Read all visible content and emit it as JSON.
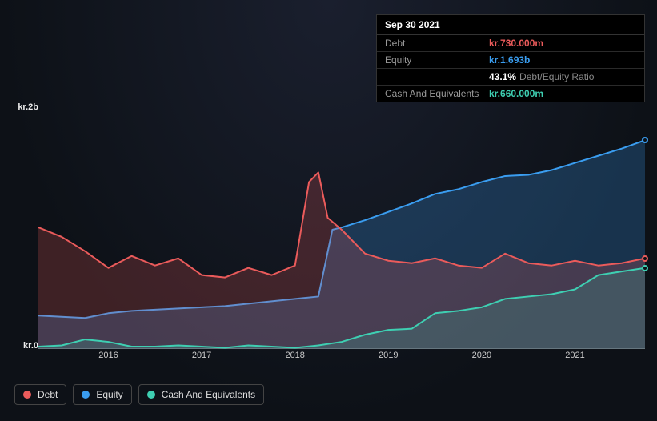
{
  "tooltip": {
    "date": "Sep 30 2021",
    "rows": [
      {
        "label": "Debt",
        "value": "kr.730.000m",
        "color": "#eb5b5b"
      },
      {
        "label": "Equity",
        "value": "kr.1.693b",
        "color": "#3a9df0"
      },
      {
        "label": "",
        "value": "43.1%",
        "suffix": "Debt/Equity Ratio",
        "color": "#ffffff"
      },
      {
        "label": "Cash And Equivalents",
        "value": "kr.660.000m",
        "color": "#3ecfb2"
      }
    ]
  },
  "chart": {
    "type": "area",
    "background": "transparent",
    "ylim": [
      0,
      2000
    ],
    "y_ticks": [
      {
        "v": 2000,
        "label": "kr.2b"
      },
      {
        "v": 0,
        "label": "kr.0"
      }
    ],
    "x_range": [
      2015.25,
      2021.75
    ],
    "x_ticks": [
      {
        "v": 2016,
        "label": "2016"
      },
      {
        "v": 2017,
        "label": "2017"
      },
      {
        "v": 2018,
        "label": "2018"
      },
      {
        "v": 2019,
        "label": "2019"
      },
      {
        "v": 2020,
        "label": "2020"
      },
      {
        "v": 2021,
        "label": "2021"
      }
    ],
    "series": [
      {
        "name": "Equity",
        "color": "#3a9df0",
        "fill_opacity": 0.25,
        "line_width": 2,
        "points": [
          [
            2015.25,
            280
          ],
          [
            2015.5,
            270
          ],
          [
            2015.75,
            260
          ],
          [
            2016,
            300
          ],
          [
            2016.25,
            320
          ],
          [
            2016.5,
            330
          ],
          [
            2016.75,
            340
          ],
          [
            2017,
            350
          ],
          [
            2017.25,
            360
          ],
          [
            2017.5,
            380
          ],
          [
            2017.75,
            400
          ],
          [
            2018,
            420
          ],
          [
            2018.25,
            440
          ],
          [
            2018.4,
            1000
          ],
          [
            2018.5,
            1020
          ],
          [
            2018.75,
            1080
          ],
          [
            2019,
            1150
          ],
          [
            2019.25,
            1220
          ],
          [
            2019.5,
            1300
          ],
          [
            2019.75,
            1340
          ],
          [
            2020,
            1400
          ],
          [
            2020.25,
            1450
          ],
          [
            2020.5,
            1460
          ],
          [
            2020.75,
            1500
          ],
          [
            2021,
            1560
          ],
          [
            2021.25,
            1620
          ],
          [
            2021.5,
            1680
          ],
          [
            2021.75,
            1750
          ]
        ]
      },
      {
        "name": "Debt",
        "color": "#eb5b5b",
        "fill_opacity": 0.22,
        "line_width": 2,
        "points": [
          [
            2015.25,
            1020
          ],
          [
            2015.5,
            940
          ],
          [
            2015.75,
            820
          ],
          [
            2016,
            680
          ],
          [
            2016.25,
            780
          ],
          [
            2016.5,
            700
          ],
          [
            2016.75,
            760
          ],
          [
            2017,
            620
          ],
          [
            2017.25,
            600
          ],
          [
            2017.5,
            680
          ],
          [
            2017.75,
            620
          ],
          [
            2018,
            700
          ],
          [
            2018.15,
            1400
          ],
          [
            2018.25,
            1480
          ],
          [
            2018.35,
            1100
          ],
          [
            2018.5,
            1000
          ],
          [
            2018.75,
            800
          ],
          [
            2019,
            740
          ],
          [
            2019.25,
            720
          ],
          [
            2019.5,
            760
          ],
          [
            2019.75,
            700
          ],
          [
            2020,
            680
          ],
          [
            2020.25,
            800
          ],
          [
            2020.5,
            720
          ],
          [
            2020.75,
            700
          ],
          [
            2021,
            740
          ],
          [
            2021.25,
            700
          ],
          [
            2021.5,
            720
          ],
          [
            2021.75,
            760
          ]
        ]
      },
      {
        "name": "Cash And Equivalents",
        "color": "#3ecfb2",
        "fill_opacity": 0.18,
        "line_width": 2,
        "points": [
          [
            2015.25,
            20
          ],
          [
            2015.5,
            30
          ],
          [
            2015.75,
            80
          ],
          [
            2016,
            60
          ],
          [
            2016.25,
            20
          ],
          [
            2016.5,
            20
          ],
          [
            2016.75,
            30
          ],
          [
            2017,
            20
          ],
          [
            2017.25,
            10
          ],
          [
            2017.5,
            30
          ],
          [
            2017.75,
            20
          ],
          [
            2018,
            10
          ],
          [
            2018.25,
            30
          ],
          [
            2018.5,
            60
          ],
          [
            2018.75,
            120
          ],
          [
            2019,
            160
          ],
          [
            2019.25,
            170
          ],
          [
            2019.5,
            300
          ],
          [
            2019.75,
            320
          ],
          [
            2020,
            350
          ],
          [
            2020.25,
            420
          ],
          [
            2020.5,
            440
          ],
          [
            2020.75,
            460
          ],
          [
            2021,
            500
          ],
          [
            2021.25,
            620
          ],
          [
            2021.5,
            650
          ],
          [
            2021.75,
            680
          ]
        ]
      }
    ]
  },
  "legend": [
    {
      "label": "Debt",
      "color": "#eb5b5b"
    },
    {
      "label": "Equity",
      "color": "#3a9df0"
    },
    {
      "label": "Cash And Equivalents",
      "color": "#3ecfb2"
    }
  ]
}
